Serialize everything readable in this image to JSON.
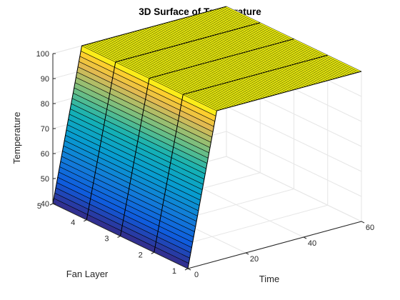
{
  "chart_data": {
    "type": "surface",
    "title": "3D Surface of Temperature",
    "xlabel": "Time",
    "ylabel": "Fan Layer",
    "zlabel": "Temperature",
    "xlim": [
      0,
      60
    ],
    "ylim": [
      1,
      5
    ],
    "zlim": [
      40,
      100
    ],
    "xticks": [
      "0",
      "20",
      "40",
      "60"
    ],
    "yticks": [
      "1",
      "2",
      "3",
      "4",
      "5"
    ],
    "zticks": [
      "40",
      "50",
      "60",
      "70",
      "80",
      "90",
      "100"
    ],
    "grid": true,
    "colormap": "parula",
    "fan_layers": [
      1,
      2,
      3,
      4,
      5
    ],
    "time_profile": {
      "description_points": [
        [
          0,
          40
        ],
        [
          10,
          100
        ],
        [
          60,
          100
        ]
      ],
      "start_temperature": 40,
      "steady_temperature": 100,
      "time_to_steady": 10
    },
    "surface_rows": 30,
    "flat_segments": 60
  },
  "colors": {
    "axis": "#262626",
    "grid": "#e6e6e6",
    "edge": "#000000"
  }
}
